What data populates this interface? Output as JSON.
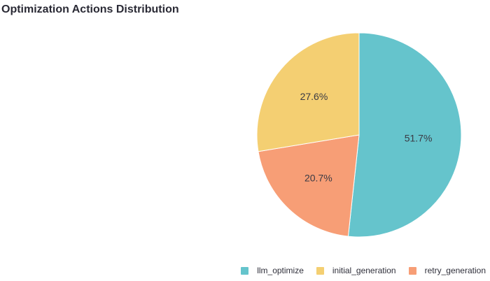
{
  "chart_data": {
    "type": "pie",
    "title": "Optimization Actions Distribution",
    "slices": [
      {
        "name": "llm_optimize",
        "percent": 51.7,
        "label": "51.7%",
        "color": "#65c4cc"
      },
      {
        "name": "retry_generation",
        "percent": 20.7,
        "label": "20.7%",
        "color": "#f79e76"
      },
      {
        "name": "initial_generation",
        "percent": 27.6,
        "label": "27.6%",
        "color": "#f4cf72"
      }
    ],
    "legend": {
      "placement": "bottom-right",
      "entries": [
        {
          "name": "llm_optimize",
          "color": "#65c4cc"
        },
        {
          "name": "initial_generation",
          "color": "#f4cf72"
        },
        {
          "name": "retry_generation",
          "color": "#f79e76"
        }
      ]
    }
  }
}
